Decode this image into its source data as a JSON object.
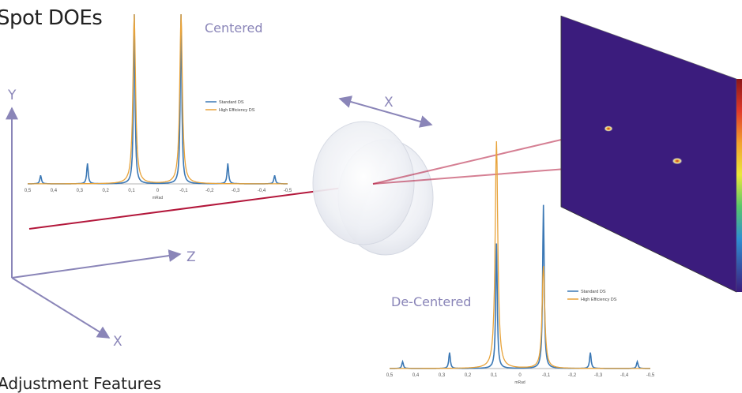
{
  "title": "Spot DOEs",
  "bottom_text": "Adjustment Features",
  "axes": {
    "y": "Y",
    "z": "Z",
    "x": "X",
    "lens_x": "X"
  },
  "colors": {
    "standard": "#3b78b5",
    "high_eff": "#e8a33a",
    "beam": "#b3173b",
    "axis": "#8a85b8",
    "screen": "#3b1c7d"
  },
  "chart_data": [
    {
      "type": "line",
      "label": "Centered",
      "xlabel": "mRad",
      "xlim": [
        0.5,
        -0.5
      ],
      "tick_labels": [
        "0,5",
        "0,4",
        "0,3",
        "0,2",
        "0,1",
        "0",
        "-0,1",
        "-0,2",
        "-0,3",
        "-0,4",
        "-0,5"
      ],
      "legend": "top-right",
      "series": [
        {
          "name": "Standard DS",
          "peaks": [
            [
              0.45,
              0.05
            ],
            [
              0.27,
              0.12
            ],
            [
              0.09,
              1.0
            ],
            [
              -0.09,
              1.0
            ],
            [
              -0.27,
              0.12
            ],
            [
              -0.45,
              0.05
            ]
          ]
        },
        {
          "name": "High Efficiency DS",
          "peaks": [
            [
              0.09,
              1.0
            ],
            [
              -0.09,
              1.0
            ]
          ]
        }
      ]
    },
    {
      "type": "line",
      "label": "De-Centered",
      "xlabel": "mRad",
      "xlim": [
        0.5,
        -0.5
      ],
      "tick_labels": [
        "0,5",
        "0,4",
        "0,3",
        "0,2",
        "0,1",
        "0",
        "-0,1",
        "-0,2",
        "-0,3",
        "-0,4",
        "-0,5"
      ],
      "legend": "right",
      "series": [
        {
          "name": "Standard DS",
          "peaks": [
            [
              0.45,
              0.03
            ],
            [
              0.27,
              0.07
            ],
            [
              0.09,
              0.55
            ],
            [
              -0.09,
              0.72
            ],
            [
              -0.27,
              0.07
            ],
            [
              -0.45,
              0.03
            ]
          ]
        },
        {
          "name": "High Efficiency DS",
          "peaks": [
            [
              0.09,
              1.0
            ],
            [
              -0.09,
              0.45
            ]
          ]
        }
      ]
    }
  ]
}
